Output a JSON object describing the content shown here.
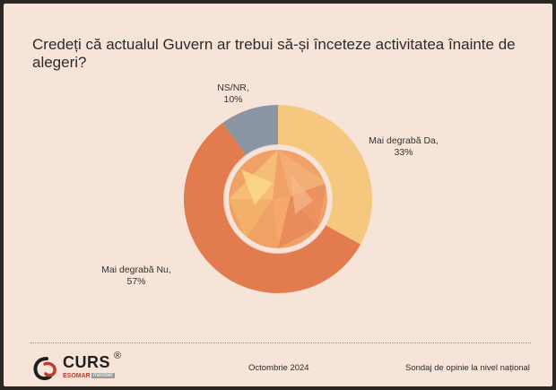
{
  "title": "Credeți că actualul Guvern ar trebui să-și înceteze activitatea înainte de alegeri?",
  "chart_data": {
    "type": "pie",
    "title": "Credeți că actualul Guvern ar trebui să-și înceteze activitatea înainte de alegeri?",
    "slices": [
      {
        "label": "Mai degrabă Da",
        "value": 33,
        "value_label": "33%",
        "color": "#f6c77f"
      },
      {
        "label": "Mai degrabă Nu",
        "value": 57,
        "value_label": "57%",
        "color": "#e27c4f"
      },
      {
        "label": "NS/NR",
        "value": 10,
        "value_label": "10%",
        "color": "#8a94a3"
      }
    ],
    "legend": "none"
  },
  "footer": {
    "logo_text": "CURS",
    "logo_mark": "®",
    "esomar": "ESOMAR",
    "member": "member",
    "date": "Octombrie 2024",
    "note": "Sondaj de opinie la nivel național"
  },
  "icons": {
    "logo": "curs-swirl-icon"
  }
}
